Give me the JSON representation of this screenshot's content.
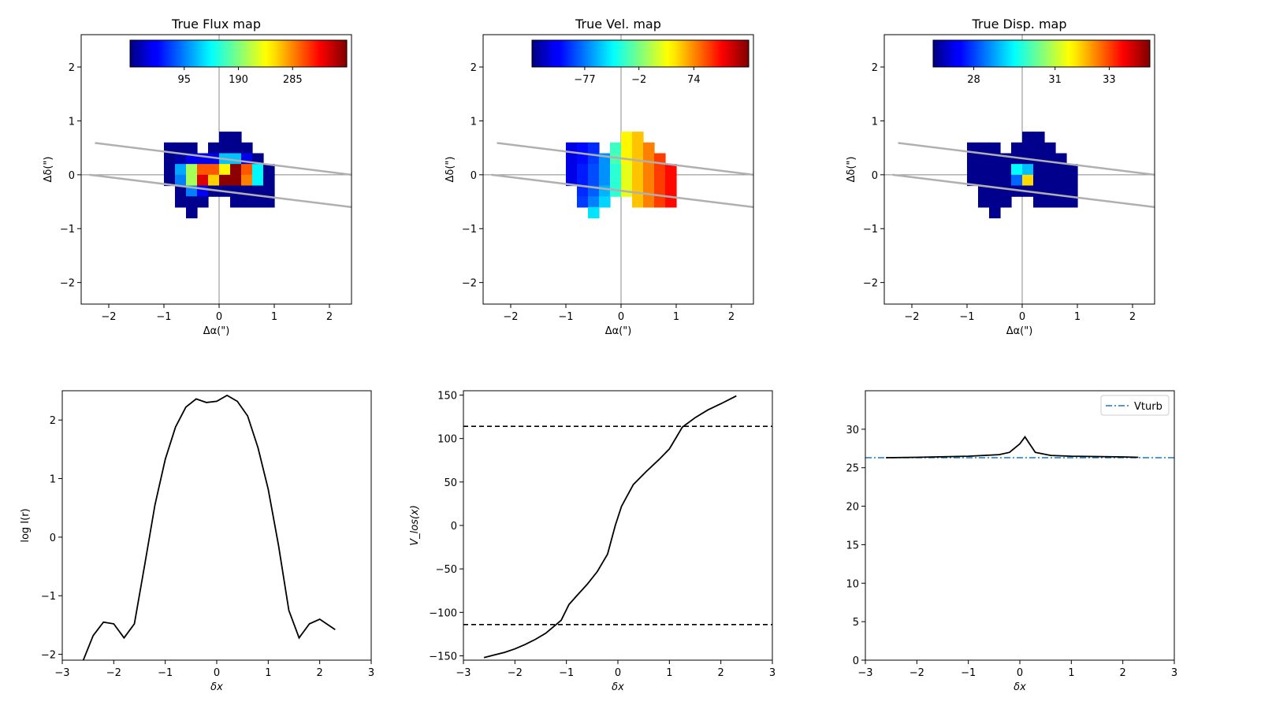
{
  "chart_data": [
    {
      "type": "heatmap",
      "title": "True Flux map",
      "xlabel": "Δα(\")",
      "ylabel": "Δδ(\")",
      "xlim": [
        -2.5,
        2.4
      ],
      "ylim": [
        -2.4,
        2.6
      ],
      "xticks": [
        -2,
        -1,
        0,
        1,
        2
      ],
      "yticks": [
        -2,
        -1,
        0,
        1,
        2
      ],
      "colorbar": {
        "ticks": [
          "95",
          "190",
          "285"
        ],
        "range": [
          0,
          380
        ],
        "tick_values": [
          95,
          190,
          285
        ]
      },
      "grid": {
        "x0": -1.0,
        "y_top": 0.8,
        "cell": 0.2
      },
      "cells": [
        [
          null,
          null,
          null,
          null,
          null,
          5,
          5,
          null,
          null,
          null
        ],
        [
          5,
          5,
          5,
          null,
          5,
          5,
          5,
          5,
          null,
          null
        ],
        [
          5,
          15,
          40,
          40,
          40,
          120,
          120,
          40,
          5,
          null
        ],
        [
          5,
          110,
          205,
          300,
          300,
          240,
          375,
          300,
          140,
          5
        ],
        [
          5,
          95,
          205,
          345,
          255,
          375,
          375,
          285,
          140,
          5
        ],
        [
          null,
          5,
          95,
          45,
          5,
          5,
          5,
          5,
          5,
          5
        ],
        [
          null,
          5,
          5,
          5,
          null,
          null,
          5,
          5,
          5,
          5
        ],
        [
          null,
          null,
          5,
          null,
          null,
          null,
          null,
          null,
          null,
          null
        ]
      ],
      "lines": [
        {
          "x": [
            -2.25,
            2.4
          ],
          "y": [
            0.59,
            0.0
          ]
        },
        {
          "x": [
            -2.35,
            2.4
          ],
          "y": [
            0.0,
            -0.6
          ]
        }
      ]
    },
    {
      "type": "heatmap",
      "title": "True Vel. map",
      "xlabel": "Δα(\")",
      "ylabel": "Δδ(\")",
      "xlim": [
        -2.5,
        2.4
      ],
      "ylim": [
        -2.4,
        2.6
      ],
      "xticks": [
        -2,
        -1,
        0,
        1,
        2
      ],
      "yticks": [
        -2,
        -1,
        0,
        1,
        2
      ],
      "colorbar": {
        "ticks": [
          "−77",
          "−2",
          "74"
        ],
        "range": [
          -150,
          150
        ],
        "tick_values": [
          -77,
          -2,
          74
        ]
      },
      "grid": {
        "x0": -1.0,
        "y_top": 0.8,
        "cell": 0.2
      },
      "cells": [
        [
          null,
          null,
          null,
          null,
          null,
          40,
          55,
          null,
          null,
          null
        ],
        [
          -120,
          -110,
          -100,
          null,
          -20,
          40,
          55,
          75,
          null,
          null
        ],
        [
          -120,
          -110,
          -95,
          -70,
          -15,
          40,
          55,
          75,
          95,
          null
        ],
        [
          -120,
          -105,
          -90,
          -70,
          -25,
          30,
          55,
          75,
          95,
          110
        ],
        [
          -120,
          -105,
          -90,
          -70,
          -25,
          30,
          55,
          75,
          95,
          110
        ],
        [
          null,
          -100,
          -85,
          -60,
          -25,
          30,
          55,
          75,
          95,
          110
        ],
        [
          null,
          -95,
          -75,
          -50,
          null,
          null,
          55,
          75,
          95,
          110
        ],
        [
          null,
          null,
          -45,
          null,
          null,
          null,
          null,
          null,
          null,
          null
        ]
      ],
      "lines": [
        {
          "x": [
            -2.25,
            2.4
          ],
          "y": [
            0.59,
            0.0
          ]
        },
        {
          "x": [
            -2.35,
            2.4
          ],
          "y": [
            0.0,
            -0.6
          ]
        }
      ]
    },
    {
      "type": "heatmap",
      "title": "True Disp. map",
      "xlabel": "Δα(\")",
      "ylabel": "Δδ(\")",
      "xlim": [
        -2.5,
        2.4
      ],
      "ylim": [
        -2.4,
        2.6
      ],
      "xticks": [
        -2,
        -1,
        0,
        1,
        2
      ],
      "yticks": [
        -2,
        -1,
        0,
        1,
        2
      ],
      "colorbar": {
        "ticks": [
          "28",
          "31",
          "33"
        ],
        "range": [
          26.5,
          34.5
        ],
        "tick_values": [
          28,
          31,
          33
        ]
      },
      "grid": {
        "x0": -1.0,
        "y_top": 0.8,
        "cell": 0.2
      },
      "cells": [
        [
          null,
          null,
          null,
          null,
          null,
          26.6,
          26.6,
          null,
          null,
          null
        ],
        [
          26.6,
          26.6,
          26.6,
          null,
          26.6,
          26.6,
          26.6,
          26.6,
          null,
          null
        ],
        [
          26.6,
          26.6,
          26.6,
          26.6,
          26.6,
          26.6,
          26.6,
          26.6,
          26.6,
          null
        ],
        [
          26.6,
          26.6,
          26.6,
          26.6,
          29.5,
          29.0,
          26.6,
          26.6,
          26.6,
          26.6
        ],
        [
          26.6,
          26.6,
          26.6,
          26.6,
          28.3,
          31.8,
          26.6,
          26.6,
          26.6,
          26.6
        ],
        [
          null,
          26.6,
          26.6,
          26.6,
          26.6,
          26.6,
          26.6,
          26.6,
          26.6,
          26.6
        ],
        [
          null,
          26.6,
          26.6,
          26.6,
          null,
          null,
          26.6,
          26.6,
          26.6,
          26.6
        ],
        [
          null,
          null,
          26.6,
          null,
          null,
          null,
          null,
          null,
          null,
          null
        ]
      ],
      "lines": [
        {
          "x": [
            -2.25,
            2.4
          ],
          "y": [
            0.59,
            0.0
          ]
        },
        {
          "x": [
            -2.35,
            2.4
          ],
          "y": [
            0.0,
            -0.6
          ]
        }
      ]
    },
    {
      "type": "line",
      "title": "",
      "xlabel": "δx",
      "ylabel": "log I(r)",
      "xlim": [
        -3,
        3
      ],
      "ylim": [
        -2.1,
        2.5
      ],
      "xticks": [
        -3,
        -2,
        -1,
        0,
        1,
        2,
        3
      ],
      "yticks": [
        -2,
        -1,
        0,
        1,
        2
      ],
      "series": [
        {
          "x": [
            -2.6,
            -2.4,
            -2.2,
            -2.0,
            -1.8,
            -1.6,
            -1.4,
            -1.2,
            -1.0,
            -0.8,
            -0.6,
            -0.4,
            -0.2,
            0.0,
            0.2,
            0.4,
            0.6,
            0.8,
            1.0,
            1.2,
            1.4,
            1.6,
            1.8,
            2.0,
            2.3
          ],
          "y": [
            -2.12,
            -1.68,
            -1.45,
            -1.48,
            -1.72,
            -1.48,
            -0.48,
            0.55,
            1.33,
            1.88,
            2.22,
            2.36,
            2.3,
            2.32,
            2.42,
            2.32,
            2.07,
            1.53,
            0.82,
            -0.14,
            -1.25,
            -1.72,
            -1.48,
            -1.4,
            -1.58
          ]
        }
      ]
    },
    {
      "type": "line",
      "title": "",
      "xlabel": "δx",
      "ylabel": "V_los(x)",
      "xlim": [
        -3,
        3
      ],
      "ylim": [
        -155,
        155
      ],
      "xticks": [
        -3,
        -2,
        -1,
        0,
        1,
        2,
        3
      ],
      "yticks": [
        -150,
        -100,
        -50,
        0,
        50,
        100,
        150
      ],
      "hlines": [
        114,
        -114
      ],
      "series": [
        {
          "x": [
            -2.6,
            -2.4,
            -2.2,
            -2.0,
            -1.8,
            -1.6,
            -1.4,
            -1.2,
            -1.1,
            -0.95,
            -0.8,
            -0.6,
            -0.4,
            -0.2,
            -0.05,
            0.07,
            0.3,
            0.55,
            0.8,
            1.0,
            1.1,
            1.25,
            1.5,
            1.75,
            2.0,
            2.3
          ],
          "y": [
            -152,
            -149,
            -146,
            -142,
            -137,
            -131,
            -124,
            -114,
            -109,
            -91,
            -81,
            -68,
            -53,
            -33,
            0,
            22,
            47,
            62,
            76,
            88,
            98,
            113,
            124,
            133,
            140,
            149
          ]
        }
      ]
    },
    {
      "type": "line",
      "title": "",
      "xlabel": "δx",
      "ylabel": "",
      "xlim": [
        -3,
        3
      ],
      "ylim": [
        0,
        35
      ],
      "xticks": [
        -3,
        -2,
        -1,
        0,
        1,
        2,
        3
      ],
      "yticks": [
        0,
        5,
        10,
        15,
        20,
        25,
        30
      ],
      "legend": {
        "placement": "upper-right",
        "entries": [
          "Vturb"
        ]
      },
      "hline": {
        "name": "Vturb",
        "y": 26.3
      },
      "series": [
        {
          "x": [
            -2.6,
            -2.0,
            -1.0,
            -0.4,
            -0.2,
            0.0,
            0.1,
            0.3,
            0.6,
            1.0,
            2.0,
            2.3
          ],
          "y": [
            26.3,
            26.35,
            26.5,
            26.7,
            27.0,
            28.1,
            29.0,
            27.0,
            26.6,
            26.5,
            26.4,
            26.35
          ]
        }
      ]
    }
  ]
}
